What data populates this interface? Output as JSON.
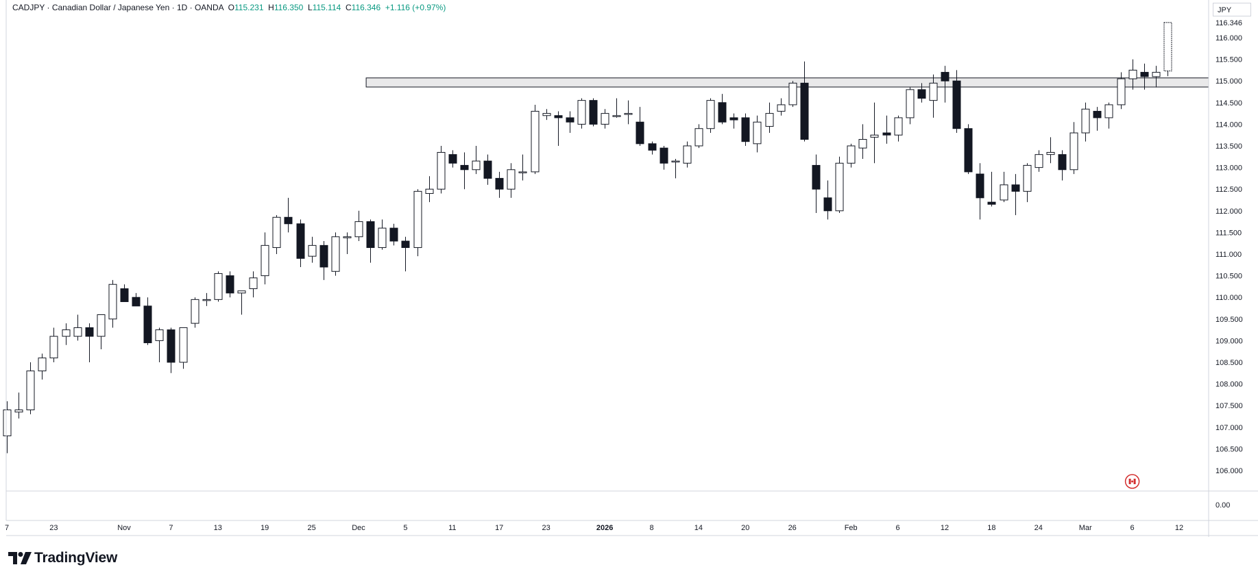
{
  "legend": {
    "symbol": "CADJPY",
    "sep1": " · ",
    "name": "Canadian Dollar / Japanese Yen",
    "sep2": " · ",
    "interval": "1D",
    "sep3": " · ",
    "exchange": "OANDA",
    "o_label": "O",
    "o_value": "115.231",
    "h_label": "H",
    "h_value": "116.350",
    "l_label": "L",
    "l_value": "115.114",
    "c_label": "C",
    "c_value": "116.346",
    "change": "+1.116 (+0.97%)"
  },
  "currency_label": "JPY",
  "logo_text": "TradingView",
  "colors": {
    "up_body": "#ffffff",
    "down_body": "#131722",
    "wick": "#131722",
    "grid_border": "#d1d4dc",
    "zone_fill": "#e9e9ea",
    "zone_stroke": "#131722",
    "flag_red": "#d32f2f",
    "last_price_accent": "#089981"
  },
  "chart_data": {
    "type": "candlestick",
    "symbol": "CADJPY",
    "interval": "1D",
    "price_axis_labels": [
      "116.000",
      "115.500",
      "115.000",
      "114.500",
      "114.000",
      "113.500",
      "113.000",
      "112.500",
      "112.000",
      "111.500",
      "111.000",
      "110.500",
      "110.000",
      "109.500",
      "109.000",
      "108.500",
      "108.000",
      "107.500",
      "107.000",
      "106.500",
      "106.000"
    ],
    "price_axis_values": [
      116.0,
      115.5,
      115.0,
      114.5,
      114.0,
      113.5,
      113.0,
      112.5,
      112.0,
      111.5,
      111.0,
      110.5,
      110.0,
      109.5,
      109.0,
      108.5,
      108.0,
      107.5,
      107.0,
      106.5,
      106.0
    ],
    "last_price_label": "116.346",
    "volume_axis_label": "0.00",
    "time_axis_labels": [
      {
        "text": "7",
        "index": 0
      },
      {
        "text": "23",
        "index": 4
      },
      {
        "text": "Nov",
        "index": 10
      },
      {
        "text": "7",
        "index": 14
      },
      {
        "text": "13",
        "index": 18
      },
      {
        "text": "19",
        "index": 22
      },
      {
        "text": "25",
        "index": 26
      },
      {
        "text": "Dec",
        "index": 30
      },
      {
        "text": "5",
        "index": 34
      },
      {
        "text": "11",
        "index": 38
      },
      {
        "text": "17",
        "index": 42
      },
      {
        "text": "23",
        "index": 46
      },
      {
        "text": "2026",
        "index": 51,
        "bold": true
      },
      {
        "text": "8",
        "index": 55
      },
      {
        "text": "14",
        "index": 59
      },
      {
        "text": "20",
        "index": 63
      },
      {
        "text": "26",
        "index": 67
      },
      {
        "text": "Feb",
        "index": 72
      },
      {
        "text": "6",
        "index": 76
      },
      {
        "text": "12",
        "index": 80
      },
      {
        "text": "18",
        "index": 84
      },
      {
        "text": "24",
        "index": 88
      },
      {
        "text": "Mar",
        "index": 92
      },
      {
        "text": "6",
        "index": 96
      },
      {
        "text": "12",
        "index": 100
      }
    ],
    "resistance_zone": {
      "start_index": 31,
      "low": 114.86,
      "high": 115.07
    },
    "candles": [
      {
        "o": 106.8,
        "h": 107.6,
        "l": 106.4,
        "c": 107.4
      },
      {
        "o": 107.35,
        "h": 107.8,
        "l": 107.2,
        "c": 107.4
      },
      {
        "o": 107.4,
        "h": 108.5,
        "l": 107.3,
        "c": 108.3
      },
      {
        "o": 108.3,
        "h": 108.7,
        "l": 108.1,
        "c": 108.6
      },
      {
        "o": 108.6,
        "h": 109.3,
        "l": 108.5,
        "c": 109.1
      },
      {
        "o": 109.1,
        "h": 109.4,
        "l": 108.9,
        "c": 109.25
      },
      {
        "o": 109.1,
        "h": 109.6,
        "l": 109.0,
        "c": 109.3
      },
      {
        "o": 109.3,
        "h": 109.4,
        "l": 108.5,
        "c": 109.1
      },
      {
        "o": 109.1,
        "h": 109.6,
        "l": 108.8,
        "c": 109.6
      },
      {
        "o": 109.5,
        "h": 110.4,
        "l": 109.3,
        "c": 110.3
      },
      {
        "o": 110.2,
        "h": 110.3,
        "l": 109.9,
        "c": 109.9
      },
      {
        "o": 110.0,
        "h": 110.1,
        "l": 109.8,
        "c": 109.8
      },
      {
        "o": 109.8,
        "h": 110.0,
        "l": 108.9,
        "c": 108.95
      },
      {
        "o": 109.0,
        "h": 109.3,
        "l": 108.5,
        "c": 109.25
      },
      {
        "o": 109.25,
        "h": 109.3,
        "l": 108.25,
        "c": 108.5
      },
      {
        "o": 108.5,
        "h": 109.3,
        "l": 108.35,
        "c": 109.3
      },
      {
        "o": 109.4,
        "h": 110.0,
        "l": 109.3,
        "c": 109.95
      },
      {
        "o": 109.95,
        "h": 110.1,
        "l": 109.8,
        "c": 109.95
      },
      {
        "o": 109.95,
        "h": 110.6,
        "l": 109.9,
        "c": 110.55
      },
      {
        "o": 110.5,
        "h": 110.6,
        "l": 110.0,
        "c": 110.1
      },
      {
        "o": 110.1,
        "h": 110.15,
        "l": 109.6,
        "c": 110.15
      },
      {
        "o": 110.2,
        "h": 110.6,
        "l": 110.0,
        "c": 110.45
      },
      {
        "o": 110.5,
        "h": 111.5,
        "l": 110.3,
        "c": 111.2
      },
      {
        "o": 111.15,
        "h": 111.9,
        "l": 111.0,
        "c": 111.85
      },
      {
        "o": 111.85,
        "h": 112.3,
        "l": 111.5,
        "c": 111.7
      },
      {
        "o": 111.7,
        "h": 111.8,
        "l": 110.7,
        "c": 110.9
      },
      {
        "o": 110.95,
        "h": 111.4,
        "l": 110.8,
        "c": 111.2
      },
      {
        "o": 111.2,
        "h": 111.3,
        "l": 110.4,
        "c": 110.7
      },
      {
        "o": 110.6,
        "h": 111.5,
        "l": 110.5,
        "c": 111.4
      },
      {
        "o": 111.4,
        "h": 111.5,
        "l": 111.0,
        "c": 111.4
      },
      {
        "o": 111.4,
        "h": 112.0,
        "l": 111.3,
        "c": 111.75
      },
      {
        "o": 111.75,
        "h": 111.8,
        "l": 110.8,
        "c": 111.15
      },
      {
        "o": 111.15,
        "h": 111.8,
        "l": 111.1,
        "c": 111.6
      },
      {
        "o": 111.6,
        "h": 111.7,
        "l": 111.2,
        "c": 111.3
      },
      {
        "o": 111.3,
        "h": 111.4,
        "l": 110.6,
        "c": 111.15
      },
      {
        "o": 111.15,
        "h": 112.5,
        "l": 110.95,
        "c": 112.45
      },
      {
        "o": 112.4,
        "h": 112.8,
        "l": 112.2,
        "c": 112.5
      },
      {
        "o": 112.5,
        "h": 113.5,
        "l": 112.4,
        "c": 113.35
      },
      {
        "o": 113.3,
        "h": 113.4,
        "l": 113.0,
        "c": 113.1
      },
      {
        "o": 113.05,
        "h": 113.35,
        "l": 112.5,
        "c": 112.95
      },
      {
        "o": 112.95,
        "h": 113.5,
        "l": 112.85,
        "c": 113.15
      },
      {
        "o": 113.15,
        "h": 113.3,
        "l": 112.6,
        "c": 112.75
      },
      {
        "o": 112.75,
        "h": 112.9,
        "l": 112.3,
        "c": 112.5
      },
      {
        "o": 112.5,
        "h": 113.1,
        "l": 112.3,
        "c": 112.95
      },
      {
        "o": 112.9,
        "h": 113.3,
        "l": 112.7,
        "c": 112.9
      },
      {
        "o": 112.9,
        "h": 114.45,
        "l": 112.85,
        "c": 114.3
      },
      {
        "o": 114.2,
        "h": 114.35,
        "l": 114.1,
        "c": 114.25
      },
      {
        "o": 114.2,
        "h": 114.3,
        "l": 113.5,
        "c": 114.15
      },
      {
        "o": 114.15,
        "h": 114.3,
        "l": 113.8,
        "c": 114.05
      },
      {
        "o": 114.0,
        "h": 114.6,
        "l": 113.9,
        "c": 114.55
      },
      {
        "o": 114.55,
        "h": 114.6,
        "l": 113.95,
        "c": 114.0
      },
      {
        "o": 114.0,
        "h": 114.35,
        "l": 113.9,
        "c": 114.25
      },
      {
        "o": 114.2,
        "h": 114.6,
        "l": 114.15,
        "c": 114.2
      },
      {
        "o": 114.25,
        "h": 114.55,
        "l": 114.0,
        "c": 114.25
      },
      {
        "o": 114.05,
        "h": 114.4,
        "l": 113.5,
        "c": 113.55
      },
      {
        "o": 113.55,
        "h": 113.6,
        "l": 113.3,
        "c": 113.4
      },
      {
        "o": 113.45,
        "h": 113.5,
        "l": 112.95,
        "c": 113.1
      },
      {
        "o": 113.15,
        "h": 113.2,
        "l": 112.75,
        "c": 113.15
      },
      {
        "o": 113.1,
        "h": 113.6,
        "l": 113.0,
        "c": 113.5
      },
      {
        "o": 113.5,
        "h": 114.0,
        "l": 113.45,
        "c": 113.9
      },
      {
        "o": 113.9,
        "h": 114.6,
        "l": 113.8,
        "c": 114.55
      },
      {
        "o": 114.5,
        "h": 114.7,
        "l": 114.0,
        "c": 114.05
      },
      {
        "o": 114.15,
        "h": 114.25,
        "l": 113.9,
        "c": 114.1
      },
      {
        "o": 114.15,
        "h": 114.25,
        "l": 113.5,
        "c": 113.6
      },
      {
        "o": 113.55,
        "h": 114.2,
        "l": 113.35,
        "c": 114.05
      },
      {
        "o": 113.95,
        "h": 114.5,
        "l": 113.8,
        "c": 114.25
      },
      {
        "o": 114.3,
        "h": 114.6,
        "l": 114.2,
        "c": 114.45
      },
      {
        "o": 114.45,
        "h": 115.0,
        "l": 114.4,
        "c": 114.95
      },
      {
        "o": 114.95,
        "h": 115.45,
        "l": 113.6,
        "c": 113.65
      },
      {
        "o": 113.05,
        "h": 113.3,
        "l": 111.95,
        "c": 112.5
      },
      {
        "o": 112.3,
        "h": 112.7,
        "l": 111.8,
        "c": 112.0
      },
      {
        "o": 112.0,
        "h": 113.25,
        "l": 111.95,
        "c": 113.1
      },
      {
        "o": 113.1,
        "h": 113.55,
        "l": 113.0,
        "c": 113.5
      },
      {
        "o": 113.45,
        "h": 114.0,
        "l": 113.2,
        "c": 113.65
      },
      {
        "o": 113.7,
        "h": 114.5,
        "l": 113.1,
        "c": 113.75
      },
      {
        "o": 113.8,
        "h": 114.2,
        "l": 113.55,
        "c": 113.75
      },
      {
        "o": 113.75,
        "h": 114.2,
        "l": 113.6,
        "c": 114.15
      },
      {
        "o": 114.15,
        "h": 114.85,
        "l": 114.0,
        "c": 114.8
      },
      {
        "o": 114.8,
        "h": 114.95,
        "l": 114.5,
        "c": 114.6
      },
      {
        "o": 114.55,
        "h": 115.15,
        "l": 114.15,
        "c": 114.95
      },
      {
        "o": 115.2,
        "h": 115.35,
        "l": 114.5,
        "c": 115.0
      },
      {
        "o": 115.0,
        "h": 115.25,
        "l": 113.8,
        "c": 113.9
      },
      {
        "o": 113.9,
        "h": 114.0,
        "l": 112.85,
        "c": 112.9
      },
      {
        "o": 112.85,
        "h": 113.1,
        "l": 111.8,
        "c": 112.3
      },
      {
        "o": 112.2,
        "h": 112.9,
        "l": 112.1,
        "c": 112.15
      },
      {
        "o": 112.25,
        "h": 112.9,
        "l": 112.2,
        "c": 112.6
      },
      {
        "o": 112.6,
        "h": 112.85,
        "l": 111.9,
        "c": 112.45
      },
      {
        "o": 112.45,
        "h": 113.1,
        "l": 112.2,
        "c": 113.05
      },
      {
        "o": 113.0,
        "h": 113.4,
        "l": 112.9,
        "c": 113.3
      },
      {
        "o": 113.3,
        "h": 113.7,
        "l": 113.1,
        "c": 113.35
      },
      {
        "o": 113.3,
        "h": 113.4,
        "l": 112.7,
        "c": 112.95
      },
      {
        "o": 112.95,
        "h": 114.05,
        "l": 112.85,
        "c": 113.8
      },
      {
        "o": 113.8,
        "h": 114.5,
        "l": 113.6,
        "c": 114.35
      },
      {
        "o": 114.3,
        "h": 114.4,
        "l": 113.85,
        "c": 114.15
      },
      {
        "o": 114.15,
        "h": 114.5,
        "l": 113.9,
        "c": 114.45
      },
      {
        "o": 114.45,
        "h": 115.2,
        "l": 114.35,
        "c": 115.05
      },
      {
        "o": 115.05,
        "h": 115.5,
        "l": 114.8,
        "c": 115.25
      },
      {
        "o": 115.2,
        "h": 115.4,
        "l": 114.8,
        "c": 115.1
      },
      {
        "o": 115.1,
        "h": 115.35,
        "l": 114.85,
        "c": 115.2
      },
      {
        "o": 115.23,
        "h": 116.35,
        "l": 115.11,
        "c": 116.35
      }
    ]
  }
}
